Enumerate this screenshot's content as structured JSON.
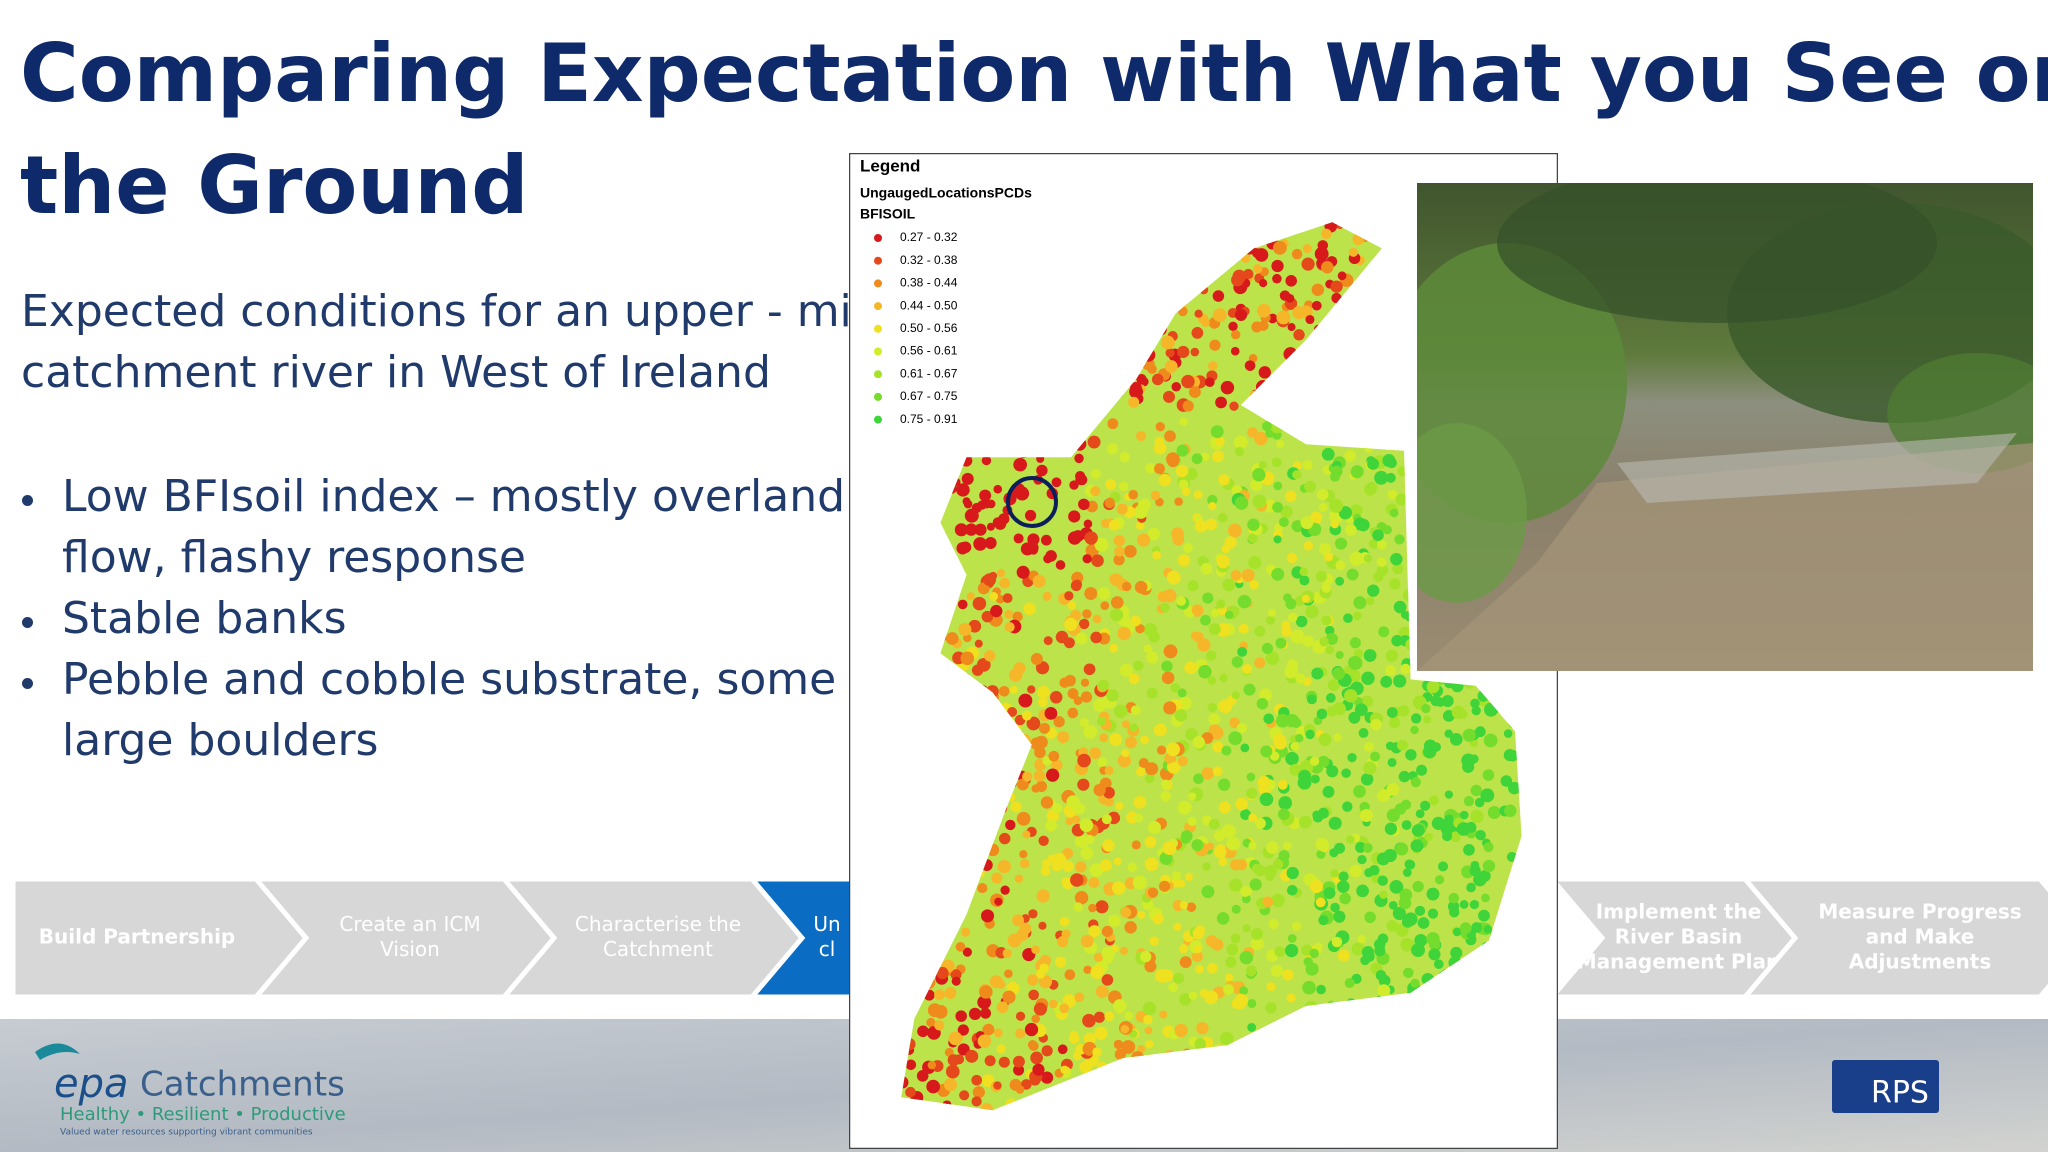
{
  "header": {
    "title_lines": [
      "Comparing Expectation with What you See on",
      "the Ground"
    ]
  },
  "intro": {
    "lines": [
      "Expected conditions for an upper - mid",
      "catchment river in West of Ireland"
    ]
  },
  "bullets": [
    [
      "Low BFIsoil index – mostly overland",
      "flow, flashy response"
    ],
    [
      "Stable banks"
    ],
    [
      "Pebble and cobble substrate, some",
      "large boulders"
    ]
  ],
  "process_steps": [
    {
      "lines": [
        "Build Partnership"
      ],
      "active": false
    },
    {
      "lines": [
        "Create an  ICM",
        "Vision"
      ],
      "active": false
    },
    {
      "lines": [
        "Characterise the",
        "Catchment"
      ],
      "active": false
    },
    {
      "lines": [
        "Un",
        "cl"
      ],
      "active": true
    },
    {
      "lines": [
        "Implement the",
        "River Basin",
        "Management Plan"
      ],
      "active": false
    },
    {
      "lines": [
        "Measure Progress",
        "and Make",
        "Adjustments"
      ],
      "active": false
    }
  ],
  "map": {
    "legend_title": "Legend",
    "layer": "UngaugedLocationsPCDs",
    "field": "BFISOIL",
    "classes": [
      {
        "label": "0.27 - 0.32",
        "color": "#d7191c"
      },
      {
        "label": "0.32 - 0.38",
        "color": "#e4481b"
      },
      {
        "label": "0.38 - 0.44",
        "color": "#ef8a1c"
      },
      {
        "label": "0.44 - 0.50",
        "color": "#f5b62a"
      },
      {
        "label": "0.50 - 0.56",
        "color": "#efe020"
      },
      {
        "label": "0.56 - 0.61",
        "color": "#d2ec2b"
      },
      {
        "label": "0.61 - 0.67",
        "color": "#a6e22a"
      },
      {
        "label": "0.67 - 0.75",
        "color": "#74dc2c"
      },
      {
        "label": "0.75 - 0.91",
        "color": "#3ed43a"
      }
    ]
  },
  "footer": {
    "logo_epa": "epa",
    "logo_name": "Catchments",
    "tagline": "Healthy • Resilient • Productive",
    "subline": "Valued water resources supporting vibrant communities",
    "partner": "RPS"
  }
}
